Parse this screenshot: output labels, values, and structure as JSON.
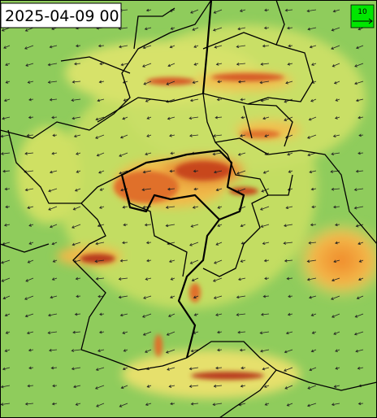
{
  "timestamp": "2025-04-09 00",
  "legend": {
    "label": 10
  }
}
